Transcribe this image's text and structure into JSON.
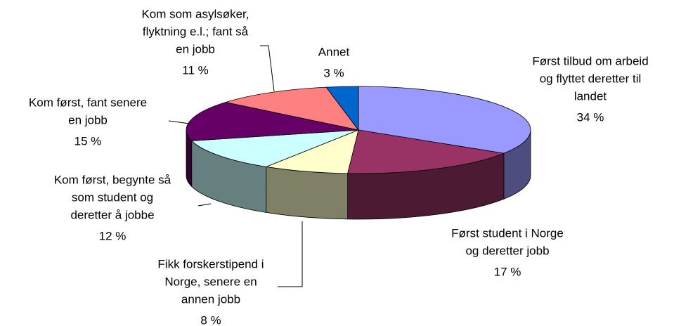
{
  "chart_data": {
    "type": "pie3d",
    "categories": [
      [
        "Først tilbud om arbeid",
        "og flyttet deretter til",
        "landet"
      ],
      [
        "Først student i Norge",
        "og deretter jobb"
      ],
      [
        "Fikk forskerstipend i",
        "Norge, senere en",
        "annen jobb"
      ],
      [
        "Kom først, begynte så",
        "som student og",
        "deretter å jobbe"
      ],
      [
        "Kom først, fant senere",
        "en jobb"
      ],
      [
        "Kom som asylsøker,",
        "flyktning e.l.; fant så",
        "en jobb"
      ],
      [
        "Annet"
      ]
    ],
    "values": [
      34,
      17,
      8,
      12,
      15,
      11,
      3
    ],
    "value_labels": [
      "34 %",
      "17 %",
      "8 %",
      "12 %",
      "15 %",
      "11 %",
      "3 %"
    ],
    "colors": [
      "#9999ff",
      "#993366",
      "#ffffcc",
      "#ccffff",
      "#660066",
      "#ff8080",
      "#0066cc"
    ]
  }
}
